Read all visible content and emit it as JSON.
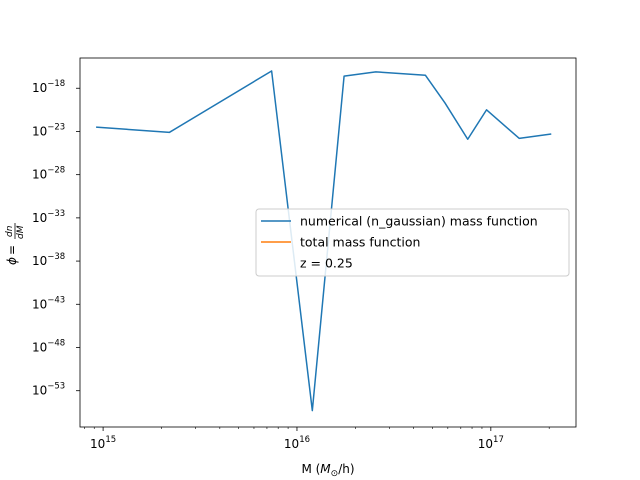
{
  "colors": {
    "numerical": "#1f77b4",
    "total": "#ff7f0e",
    "axes": "#000000",
    "legend_border": "#cccccc",
    "background": "#ffffff"
  },
  "chart_data": {
    "type": "line",
    "title": "",
    "xlabel": "M (M_⊙/h)",
    "ylabel": "ϕ = dn/dM",
    "xscale": "log",
    "yscale": "log",
    "xlim": [
      760000000000000.0,
      2.75e+17
    ],
    "ylim_exponent": [
      -57.2,
      -14.5
    ],
    "grid": false,
    "legend_placement": "center-right",
    "x_ticks": [
      {
        "exp": 15,
        "label": "10",
        "sup": "15"
      },
      {
        "exp": 16,
        "label": "10",
        "sup": "16"
      },
      {
        "exp": 17,
        "label": "10",
        "sup": "17"
      }
    ],
    "y_ticks": [
      {
        "exp": -18,
        "label": "10",
        "sup": "−18"
      },
      {
        "exp": -23,
        "label": "10",
        "sup": "−23"
      },
      {
        "exp": -28,
        "label": "10",
        "sup": "−28"
      },
      {
        "exp": -33,
        "label": "10",
        "sup": "−33"
      },
      {
        "exp": -38,
        "label": "10",
        "sup": "−38"
      },
      {
        "exp": -43,
        "label": "10",
        "sup": "−43"
      },
      {
        "exp": -48,
        "label": "10",
        "sup": "−48"
      },
      {
        "exp": -53,
        "label": "10",
        "sup": "−53"
      }
    ],
    "series": [
      {
        "name": "numerical (n_gaussian) mass function",
        "color_key": "numerical",
        "points": [
          {
            "x": 920000000000000.0,
            "y_exponent": -22.5
          },
          {
            "x": 2200000000000000.0,
            "y_exponent": -23.1
          },
          {
            "x": 7400000000000000.0,
            "y_exponent": -16.0
          },
          {
            "x": 1.2e+16,
            "y_exponent": -55.3
          },
          {
            "x": 1.75e+16,
            "y_exponent": -16.6
          },
          {
            "x": 2.55e+16,
            "y_exponent": -16.1
          },
          {
            "x": 4.6e+16,
            "y_exponent": -16.5
          },
          {
            "x": 5.8e+16,
            "y_exponent": -19.7
          },
          {
            "x": 7.6e+16,
            "y_exponent": -23.9
          },
          {
            "x": 9.5e+16,
            "y_exponent": -20.5
          },
          {
            "x": 1.4e+17,
            "y_exponent": -23.8
          },
          {
            "x": 2.05e+17,
            "y_exponent": -23.3
          }
        ]
      },
      {
        "name": "total mass function",
        "color_key": "total",
        "points": []
      }
    ],
    "legend": [
      {
        "label": "numerical (n_gaussian) mass function",
        "color_key": "numerical",
        "has_line": true
      },
      {
        "label": "total mass function",
        "color_key": "total",
        "has_line": true
      },
      {
        "label": "z = 0.25",
        "color_key": "",
        "has_line": false
      }
    ]
  }
}
